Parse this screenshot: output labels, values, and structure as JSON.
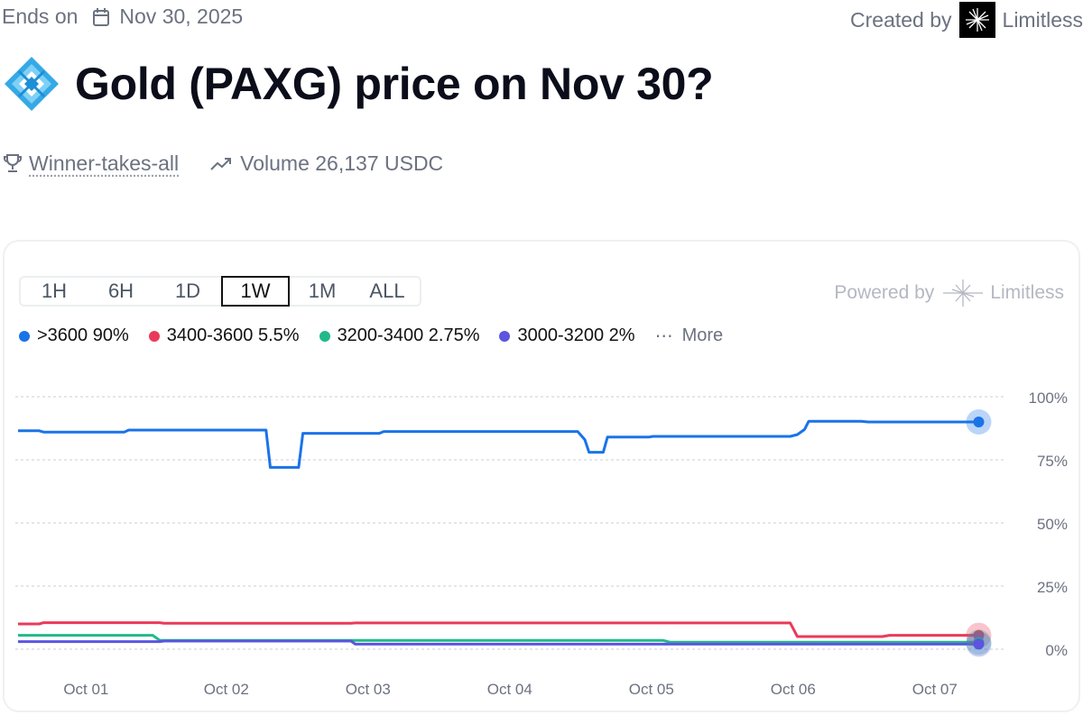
{
  "header": {
    "ends_label": "Ends on",
    "ends_date": "Nov 30, 2025",
    "created_by_label": "Created by",
    "creator": "Limitless"
  },
  "title": "Gold (PAXG) price on Nov 30?",
  "meta": {
    "market_type": "Winner-takes-all",
    "volume": "Volume 26,137 USDC"
  },
  "tabs": [
    {
      "label": "1H",
      "active": false
    },
    {
      "label": "6H",
      "active": false
    },
    {
      "label": "1D",
      "active": false
    },
    {
      "label": "1W",
      "active": true
    },
    {
      "label": "1M",
      "active": false
    },
    {
      "label": "ALL",
      "active": false
    }
  ],
  "powered": {
    "label": "Powered by",
    "brand": "Limitless"
  },
  "legend": [
    {
      "text": ">3600 90%",
      "color": "#1a73e8"
    },
    {
      "text": "3400-3600 5.5%",
      "color": "#ea3a5a"
    },
    {
      "text": "3200-3400 2.75%",
      "color": "#22b98a"
    },
    {
      "text": "3000-3200 2%",
      "color": "#5b55e0"
    }
  ],
  "more_label": "More",
  "chart_data": {
    "type": "line",
    "x_tick_labels": [
      "Oct 01",
      "Oct 02",
      "Oct 03",
      "Oct 04",
      "Oct 05",
      "Oct 06",
      "Oct 07"
    ],
    "y_tick_labels": [
      "100%",
      "75%",
      "50%",
      "25%",
      "0%"
    ],
    "ylim": [
      0,
      100
    ],
    "xlim": [
      0.0,
      7.0
    ],
    "grid": true,
    "series": [
      {
        "name": ">3600",
        "color": "#1a73e8",
        "points": [
          [
            0.0,
            86.5
          ],
          [
            0.15,
            86.5
          ],
          [
            0.18,
            86
          ],
          [
            0.75,
            86
          ],
          [
            0.78,
            86.8
          ],
          [
            1.75,
            86.8
          ],
          [
            1.78,
            72
          ],
          [
            1.98,
            72
          ],
          [
            2.01,
            85.5
          ],
          [
            2.55,
            85.5
          ],
          [
            2.58,
            86.2
          ],
          [
            3.95,
            86.2
          ],
          [
            4.0,
            83
          ],
          [
            4.03,
            78
          ],
          [
            4.13,
            78
          ],
          [
            4.16,
            84
          ],
          [
            4.45,
            84
          ],
          [
            4.48,
            84.3
          ],
          [
            5.45,
            84.3
          ],
          [
            5.5,
            85
          ],
          [
            5.55,
            87
          ],
          [
            5.58,
            90.3
          ],
          [
            5.95,
            90.3
          ],
          [
            6.0,
            90
          ],
          [
            6.78,
            90
          ]
        ]
      },
      {
        "name": "3400-3600",
        "color": "#ea3a5a",
        "points": [
          [
            0.0,
            10
          ],
          [
            0.15,
            10
          ],
          [
            0.18,
            10.5
          ],
          [
            1.0,
            10.5
          ],
          [
            1.03,
            10.3
          ],
          [
            2.35,
            10.3
          ],
          [
            2.38,
            10.4
          ],
          [
            5.45,
            10.4
          ],
          [
            5.5,
            5
          ],
          [
            6.1,
            5
          ],
          [
            6.15,
            5.5
          ],
          [
            6.78,
            5.5
          ]
        ]
      },
      {
        "name": "3200-3400",
        "color": "#22b98a",
        "points": [
          [
            0.0,
            5.5
          ],
          [
            0.95,
            5.5
          ],
          [
            1.0,
            3.5
          ],
          [
            4.55,
            3.5
          ],
          [
            4.6,
            2.8
          ],
          [
            6.78,
            2.75
          ]
        ]
      },
      {
        "name": "3000-3200",
        "color": "#5b55e0",
        "points": [
          [
            0.0,
            3
          ],
          [
            1.0,
            3
          ],
          [
            1.03,
            3.2
          ],
          [
            2.35,
            3.2
          ],
          [
            2.38,
            2
          ],
          [
            6.78,
            2
          ]
        ]
      }
    ]
  }
}
